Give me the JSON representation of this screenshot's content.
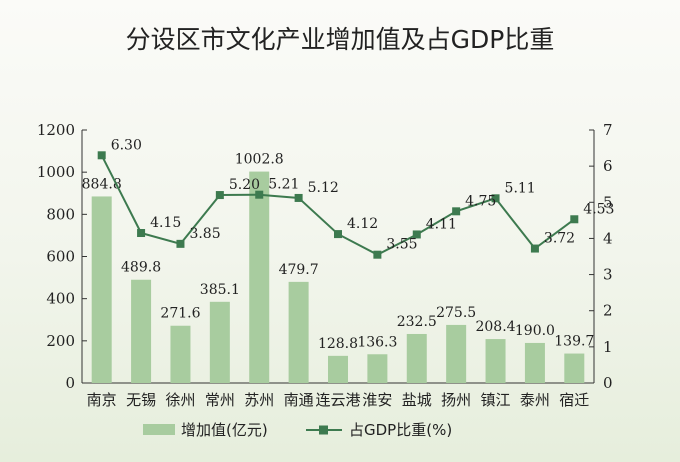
{
  "chart_data": {
    "type": "bar",
    "title": "分设区市文化产业增加值及占GDP比重",
    "categories": [
      "南京",
      "无锡",
      "徐州",
      "常州",
      "苏州",
      "南通",
      "连云港",
      "淮安",
      "盐城",
      "扬州",
      "镇江",
      "泰州",
      "宿迁"
    ],
    "series": [
      {
        "name": "增加值(亿元)",
        "type": "bar",
        "axis": "left",
        "color": "#a8cc9f",
        "values": [
          884.8,
          489.8,
          271.6,
          385.1,
          1002.8,
          479.7,
          128.8,
          136.3,
          232.5,
          275.5,
          208.4,
          190.0,
          139.7
        ],
        "labels": [
          "884.8",
          "489.8",
          "271.6",
          "385.1",
          "1002.8",
          "479.7",
          "128.8",
          "136.3",
          "232.5",
          "275.5",
          "208.4",
          "190.0",
          "139.7"
        ]
      },
      {
        "name": "占GDP比重(%)",
        "type": "line",
        "axis": "right",
        "color": "#3d7a4f",
        "values": [
          6.3,
          4.15,
          3.85,
          5.2,
          5.21,
          5.12,
          4.12,
          3.55,
          4.11,
          4.75,
          5.11,
          3.72,
          4.53
        ],
        "labels": [
          "6.30",
          "4.15",
          "3.85",
          "5.20",
          "5.21",
          "5.12",
          "4.12",
          "3.55",
          "4.11",
          "4.75",
          "5.11",
          "3.72",
          "4.53"
        ]
      }
    ],
    "y_left": {
      "ylim": [
        0,
        1200
      ],
      "ticks": [
        "0",
        "200",
        "400",
        "600",
        "800",
        "1000",
        "1200"
      ]
    },
    "y_right": {
      "ylim": [
        0,
        7
      ],
      "ticks": [
        "0",
        "1",
        "2",
        "3",
        "4",
        "5",
        "6",
        "7"
      ]
    },
    "grid": false,
    "legend_position": "bottom-center"
  }
}
